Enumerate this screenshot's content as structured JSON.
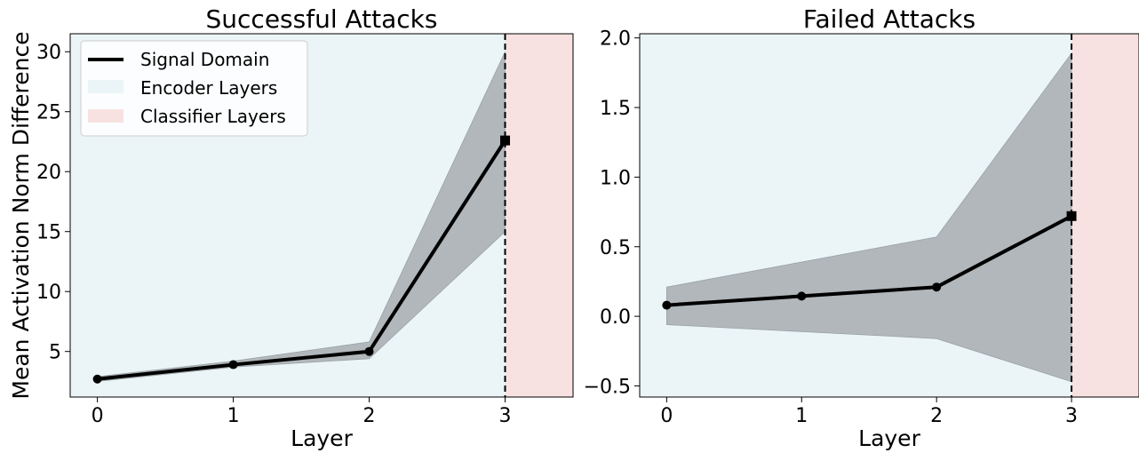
{
  "chart_data": [
    {
      "type": "line",
      "title": "Successful Attacks",
      "xlabel": "Layer",
      "ylabel": "Mean Activation Norm Difference",
      "x": [
        0,
        1,
        2,
        3
      ],
      "xlim": [
        -0.2,
        3.5
      ],
      "ylim": [
        1.2,
        31.5
      ],
      "xticks": [
        "0",
        "1",
        "2",
        "3"
      ],
      "yticks": [
        5,
        10,
        15,
        20,
        25,
        30
      ],
      "series": [
        {
          "name": "Signal Domain",
          "color": "#000000",
          "values": [
            2.7,
            3.9,
            5.0,
            22.6
          ],
          "band_lower": [
            2.5,
            3.7,
            4.4,
            15.0
          ],
          "band_upper": [
            2.9,
            4.2,
            5.8,
            30.0
          ],
          "final_marker": "square"
        }
      ],
      "regions": [
        {
          "name": "Encoder Layers",
          "from": -0.2,
          "to": 3,
          "color": "#ebf5f8"
        },
        {
          "name": "Classifier Layers",
          "from": 3,
          "to": 3.5,
          "color": "#f8e2e1"
        }
      ],
      "boundary_line": 3,
      "legend": {
        "position": "top-left",
        "entries": [
          "Signal Domain",
          "Encoder Layers",
          "Classifier Layers"
        ]
      },
      "band_color": "#b1b7bb",
      "grid": false
    },
    {
      "type": "line",
      "title": "Failed Attacks",
      "xlabel": "Layer",
      "ylabel": "",
      "x": [
        0,
        1,
        2,
        3
      ],
      "xlim": [
        -0.2,
        3.5
      ],
      "ylim": [
        -0.58,
        2.03
      ],
      "xticks": [
        "0",
        "1",
        "2",
        "3"
      ],
      "yticks": [
        -0.5,
        0.0,
        0.5,
        1.0,
        1.5,
        2.0
      ],
      "ytick_labels": [
        "−0.5",
        "0.0",
        "0.5",
        "1.0",
        "1.5",
        "2.0"
      ],
      "series": [
        {
          "name": "Signal Domain",
          "color": "#000000",
          "values": [
            0.08,
            0.145,
            0.21,
            0.72
          ],
          "band_lower": [
            -0.06,
            -0.11,
            -0.16,
            -0.47
          ],
          "band_upper": [
            0.21,
            0.39,
            0.57,
            1.89
          ],
          "final_marker": "square"
        }
      ],
      "regions": [
        {
          "name": "Encoder Layers",
          "from": -0.2,
          "to": 3,
          "color": "#ebf5f8"
        },
        {
          "name": "Classifier Layers",
          "from": 3,
          "to": 3.5,
          "color": "#f8e2e1"
        }
      ],
      "boundary_line": 3,
      "band_color": "#b1b7bb",
      "grid": false
    }
  ]
}
